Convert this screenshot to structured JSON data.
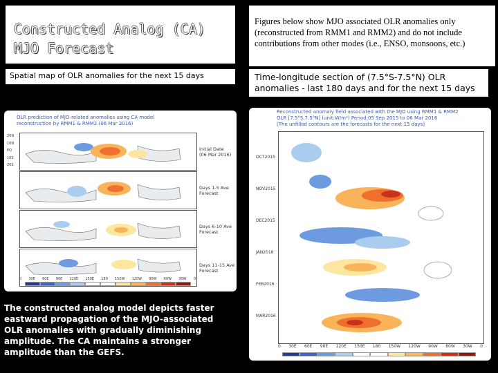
{
  "slide": {
    "title_line1": "Constructed Analog (CA)",
    "title_line2": "MJO Forecast",
    "note": "Figures below show MJO associated OLR anomalies only (reconstructed from RMM1 and RMM2) and do not include contributions from other modes (i.e., ENSO, monsoons, etc.)",
    "left_header": "Spatial map of OLR anomalies for the next 15 days",
    "right_header": "Time-longitude section of (7.5°S-7.5°N) OLR anomalies - last 180 days and for the next 15 days",
    "description": "The constructed analog model depicts faster eastward propagation of the MJO-associated OLR anomalies with gradually diminishing amplitude. The CA maintains a stronger amplitude than the GEFS."
  },
  "left_figure": {
    "caption_line1": "OLR prediction of MJO-related anomalies using CA model",
    "caption_line2": "reconstruction by RMM1 & RMM2 (06 Mar 2016)",
    "panels": [
      {
        "label_line1": "Initial Date",
        "label_line2": "(06 Mar 2016)"
      },
      {
        "label_line1": "Days 1-5 Ave",
        "label_line2": "Forecast"
      },
      {
        "label_line1": "Days 6-10 Ave",
        "label_line2": "Forecast"
      },
      {
        "label_line1": "Days 11-15 Ave",
        "label_line2": "Forecast"
      }
    ],
    "lat_ticks": [
      "20N",
      "10N",
      "EQ",
      "10S",
      "20S"
    ],
    "lon_ticks": [
      "0",
      "30E",
      "60E",
      "90E",
      "120E",
      "150E",
      "180",
      "150W",
      "120W",
      "90W",
      "60W",
      "30W",
      "0"
    ],
    "colorbar_colors": [
      "#2a3b8f",
      "#3f63c2",
      "#6e9be0",
      "#a9ccef",
      "#ffffff",
      "#ffffff",
      "#fde6a0",
      "#f9b45a",
      "#ef6f2e",
      "#c8321c",
      "#8e1b12"
    ]
  },
  "right_figure": {
    "caption_line1": "Reconstructed anomaly field associated with the MJO using RMM1 & RMM2",
    "caption_line2": "OLR [7.5°S,7.5°N] (unit:W/m²) Period:05 Sep 2015 to 06 Mar 2016",
    "caption_line3": "[The unfilled contours are the forecasts for the next 15 days]",
    "date_labels": [
      "OCT2015",
      "NOV2015",
      "DEC2015",
      "JAN2016",
      "FEB2016",
      "MAR2016"
    ],
    "lon_ticks": [
      "0",
      "30E",
      "60E",
      "90E",
      "120E",
      "150E",
      "180",
      "150W",
      "120W",
      "90W",
      "60W",
      "30W",
      "0"
    ],
    "colorbar_colors": [
      "#2a3b8f",
      "#3f63c2",
      "#6e9be0",
      "#a9ccef",
      "#ffffff",
      "#ffffff",
      "#fde6a0",
      "#f9b45a",
      "#ef6f2e",
      "#c8321c",
      "#8e1b12"
    ]
  }
}
